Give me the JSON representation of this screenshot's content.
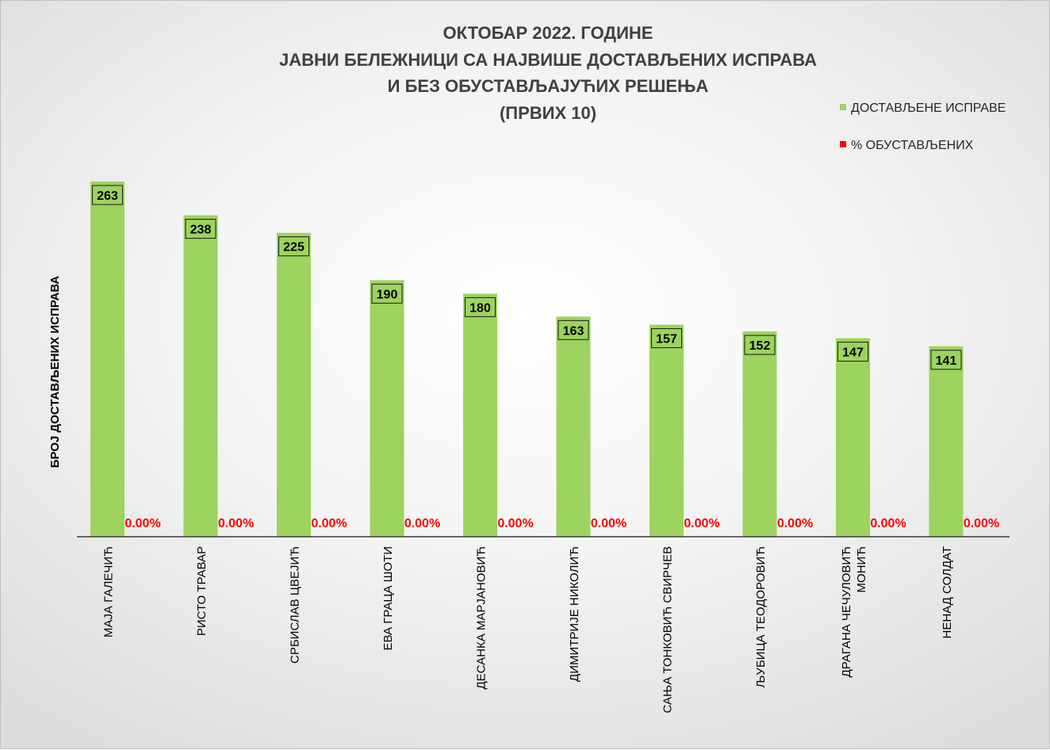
{
  "chart_data": {
    "type": "bar",
    "title_lines": [
      "ОКТОБАР 2022. ГОДИНЕ",
      "ЈАВНИ БЕЛЕЖНИЦИ СА НАЈВИШЕ ДОСТАВЉЕНИХ ИСПРАВА",
      "И БЕЗ ОБУСТАВЉАЈУЋИХ РЕШЕЊА",
      "(ПРВИХ 10)"
    ],
    "ylabel": "БРОЈ ДОСТАВЉЕНИХ ИСПРАВА",
    "xlabel": "",
    "ylim": [
      0,
      270
    ],
    "grid": false,
    "legend_position": "top-right",
    "categories": [
      [
        "МАЈА ГАЛЕЧИЋ"
      ],
      [
        "РИСТО ТРАВАР"
      ],
      [
        "СРБИСЛАВ ЦВЕЈИЋ"
      ],
      [
        "ЕВА ГРАЦА ШОТИ"
      ],
      [
        "ДЕСАНКА МАРЈАНОВИЋ"
      ],
      [
        "ДИМИТРИЈЕ НИКОЛИЋ"
      ],
      [
        "САЊА ТОНКОВИЋ СВИРЧЕВ"
      ],
      [
        "ЉУБИЦА ТЕОДОРОВИЋ"
      ],
      [
        "ДРАГАНА ЧЕЧУЛОВИЋ",
        "МОНИЋ"
      ],
      [
        "НЕНАД СОЛДАТ"
      ]
    ],
    "series": [
      {
        "name": "ДОСТАВЉЕНЕ ИСПРАВЕ",
        "color": "#9dd35f",
        "values": [
          263,
          238,
          225,
          190,
          180,
          163,
          157,
          152,
          147,
          141
        ],
        "labels": [
          "263",
          "238",
          "225",
          "190",
          "180",
          "163",
          "157",
          "152",
          "147",
          "141"
        ]
      },
      {
        "name": "% ОБУСТАВЉЕНИХ",
        "color": "#ff0000",
        "values": [
          0,
          0,
          0,
          0,
          0,
          0,
          0,
          0,
          0,
          0
        ],
        "labels": [
          "0.00%",
          "0.00%",
          "0.00%",
          "0.00%",
          "0.00%",
          "0.00%",
          "0.00%",
          "0.00%",
          "0.00%",
          "0.00%"
        ]
      }
    ]
  }
}
